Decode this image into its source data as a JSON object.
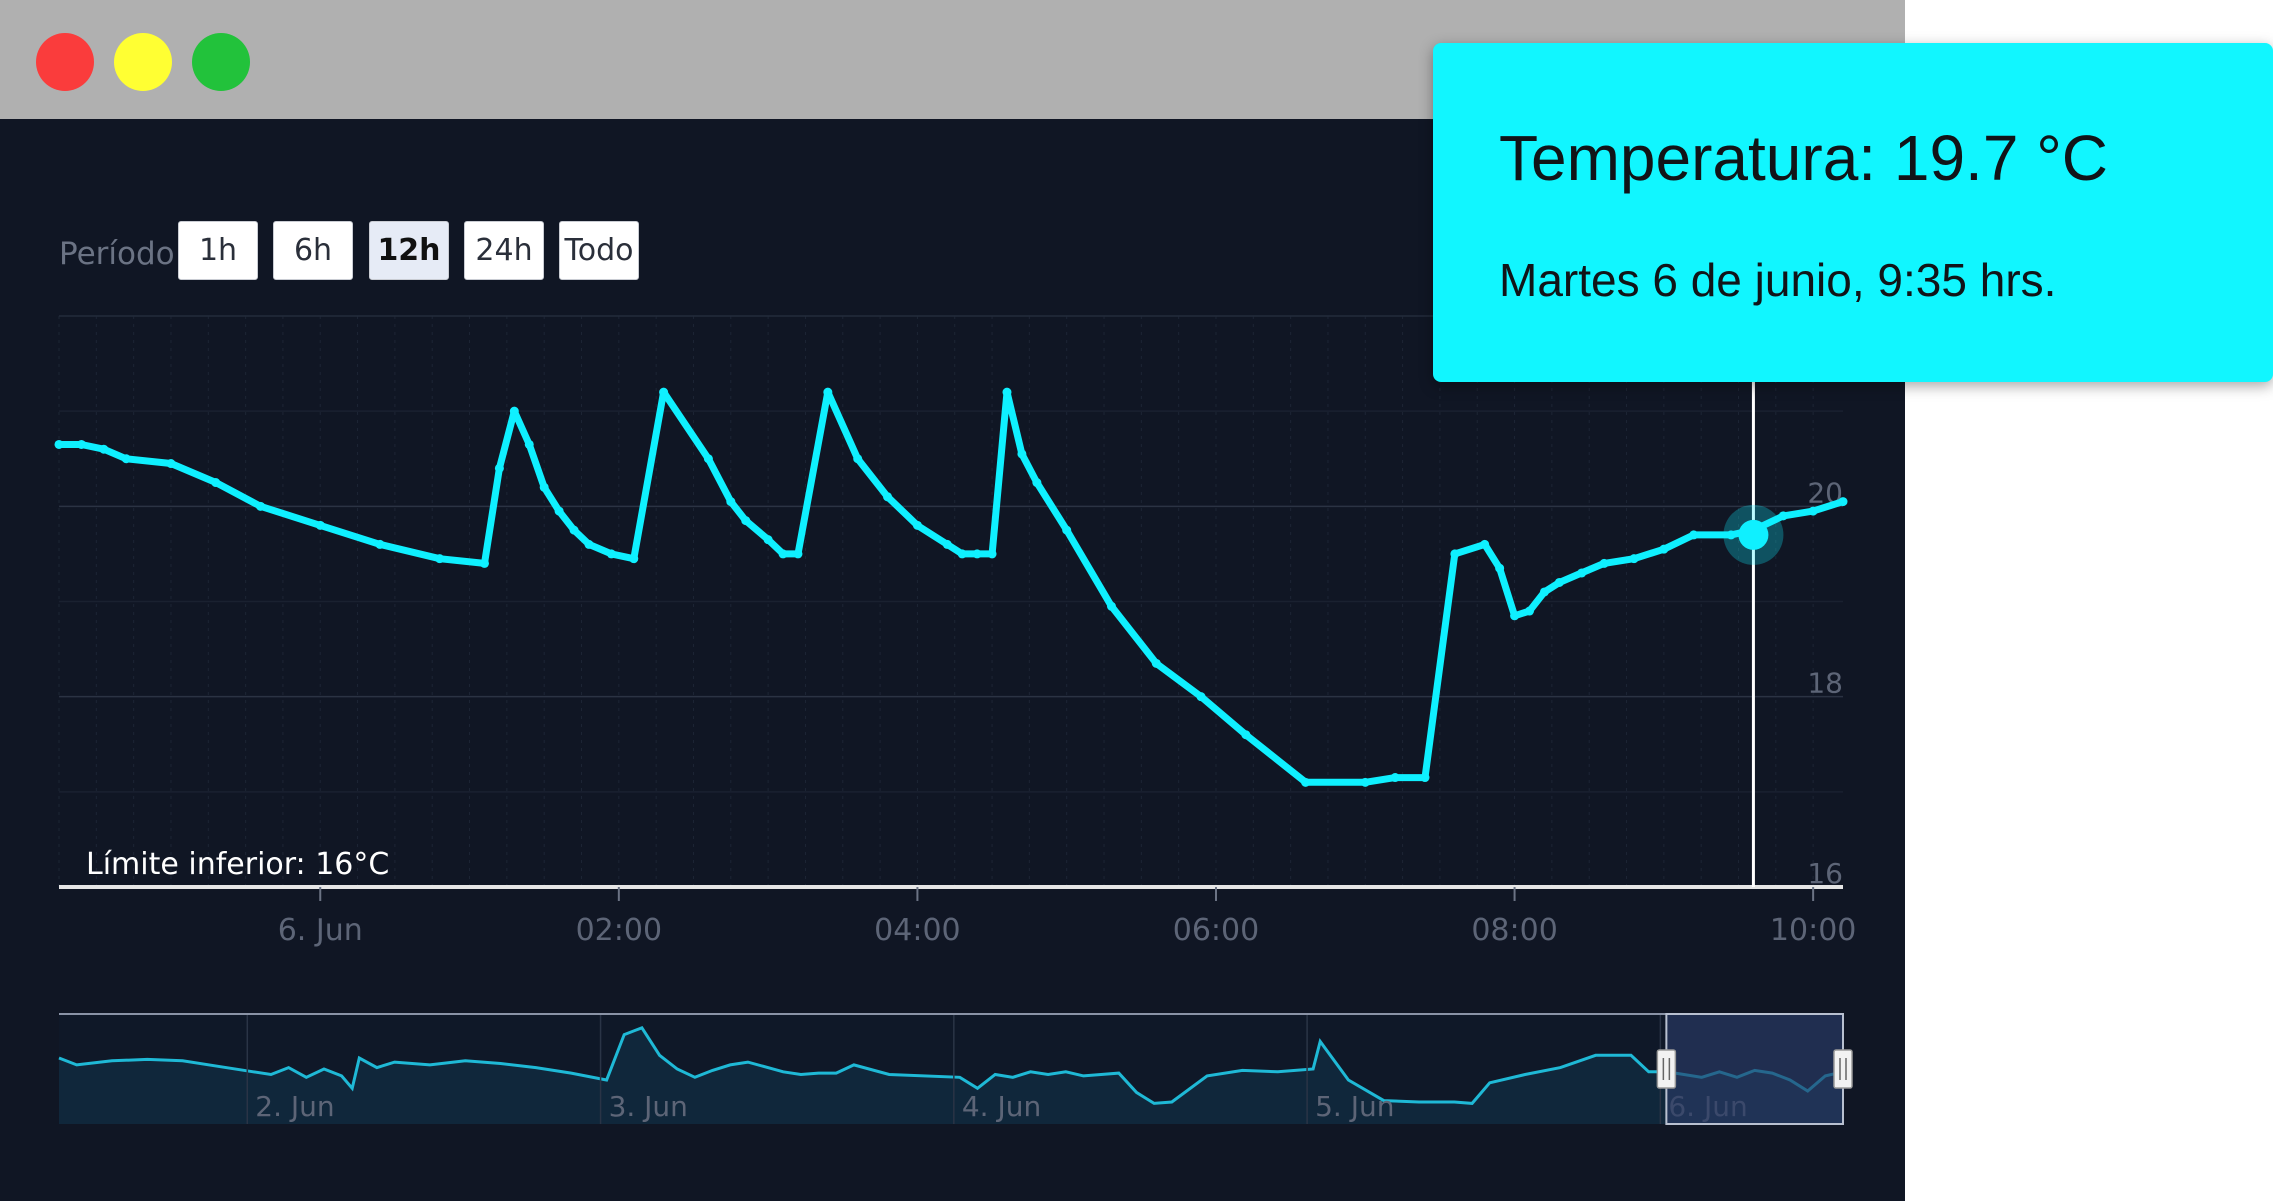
{
  "window": {
    "buttons": [
      "close",
      "minimize",
      "maximize"
    ]
  },
  "period": {
    "label": "Período",
    "options": [
      "1h",
      "6h",
      "12h",
      "24h",
      "Todo"
    ],
    "selected": "12h"
  },
  "tooltip": {
    "temperature": "Temperatura: 19.7 °C",
    "datetime": "Martes 6 de junio, 9:35 hrs."
  },
  "colors": {
    "series": "#0ff0ff",
    "background": "#101624",
    "tooltip": "#11f6ff",
    "navigator_selection": "#2a3a66"
  },
  "chart_data": [
    {
      "type": "line",
      "title": "",
      "xlabel": "",
      "ylabel": "",
      "x_tick_labels": [
        "6. Jun",
        "02:00",
        "04:00",
        "06:00",
        "08:00",
        "10:00"
      ],
      "x_tick_hours": [
        0,
        2,
        4,
        6,
        8,
        10
      ],
      "xlim_hours": [
        -1.75,
        10.2
      ],
      "y_ticks": [
        16,
        18,
        20
      ],
      "ylim": [
        16,
        22
      ],
      "plot_band_label": "Límite inferior: 16°C",
      "crosshair": {
        "x_hours": 9.6,
        "value": 19.7
      },
      "series": [
        {
          "x_hours": [
            -1.75,
            -1.6,
            -1.45,
            -1.3,
            -1.0,
            -0.7,
            -0.4,
            0.0,
            0.4,
            0.8,
            1.1,
            1.2,
            1.3,
            1.4,
            1.5,
            1.6,
            1.7,
            1.8,
            1.95,
            2.1,
            2.3,
            2.6,
            2.75,
            2.85,
            3.0,
            3.1,
            3.2,
            3.4,
            3.6,
            3.8,
            4.0,
            4.2,
            4.3,
            4.4,
            4.5,
            4.6,
            4.7,
            4.8,
            5.0,
            5.3,
            5.6,
            5.9,
            6.2,
            6.6,
            7.0,
            7.2,
            7.4,
            7.6,
            7.8,
            7.9,
            8.0,
            8.1,
            8.2,
            8.3,
            8.45,
            8.6,
            8.8,
            9.0,
            9.2,
            9.45,
            9.6,
            9.8,
            10.0,
            10.2
          ],
          "y": [
            20.65,
            20.65,
            20.6,
            20.5,
            20.45,
            20.25,
            20.0,
            19.8,
            19.6,
            19.45,
            19.4,
            20.4,
            21.0,
            20.65,
            20.2,
            19.95,
            19.75,
            19.6,
            19.5,
            19.45,
            21.2,
            20.5,
            20.05,
            19.85,
            19.65,
            19.5,
            19.5,
            21.2,
            20.5,
            20.1,
            19.8,
            19.6,
            19.5,
            19.5,
            19.5,
            21.2,
            20.55,
            20.25,
            19.75,
            18.95,
            18.35,
            18.0,
            17.6,
            17.1,
            17.1,
            17.15,
            17.15,
            19.5,
            19.6,
            19.35,
            18.85,
            18.9,
            19.1,
            19.2,
            19.3,
            19.4,
            19.45,
            19.55,
            19.7,
            19.7,
            19.75,
            19.9,
            19.95,
            20.05
          ]
        }
      ]
    },
    {
      "type": "area",
      "title": "",
      "x_tick_labels": [
        "2. Jun",
        "3. Jun",
        "4. Jun",
        "5. Jun",
        "6. Jun"
      ],
      "x_tick_days": [
        2,
        3,
        4,
        5,
        6
      ],
      "xlim_days": [
        1.45,
        6.5
      ],
      "ylim": [
        16,
        24
      ],
      "selection_days": [
        6.0,
        6.5
      ],
      "series": [
        {
          "x_days": [
            1.45,
            1.5,
            1.6,
            1.7,
            1.8,
            1.9,
            2.0,
            2.05,
            2.1,
            2.15,
            2.2,
            2.25,
            2.28,
            2.3,
            2.35,
            2.4,
            2.5,
            2.6,
            2.7,
            2.8,
            2.9,
            3.0,
            3.05,
            3.1,
            3.15,
            3.2,
            3.25,
            3.3,
            3.35,
            3.4,
            3.5,
            3.55,
            3.6,
            3.65,
            3.7,
            3.8,
            4.0,
            4.05,
            4.1,
            4.15,
            4.2,
            4.25,
            4.3,
            4.35,
            4.4,
            4.45,
            4.5,
            4.55,
            4.6,
            4.7,
            4.8,
            4.9,
            5.0,
            5.02,
            5.1,
            5.2,
            5.3,
            5.4,
            5.45,
            5.5,
            5.6,
            5.7,
            5.8,
            5.9,
            5.95,
            6.0,
            6.05,
            6.1,
            6.15,
            6.2,
            6.25,
            6.3,
            6.35,
            6.4,
            6.45,
            6.5
          ],
          "y": [
            20.8,
            20.3,
            20.6,
            20.7,
            20.6,
            20.2,
            19.8,
            19.6,
            20.1,
            19.4,
            20.0,
            19.5,
            18.6,
            20.8,
            20.1,
            20.5,
            20.3,
            20.6,
            20.4,
            20.1,
            19.7,
            19.2,
            22.5,
            23.0,
            21.0,
            20.0,
            19.4,
            19.9,
            20.3,
            20.5,
            19.8,
            19.6,
            19.7,
            19.7,
            20.3,
            19.6,
            19.4,
            18.6,
            19.6,
            19.4,
            19.8,
            19.6,
            19.8,
            19.5,
            19.6,
            19.7,
            18.3,
            17.5,
            17.6,
            19.5,
            19.9,
            19.8,
            20.0,
            22.0,
            19.2,
            17.7,
            17.6,
            17.6,
            17.5,
            19.0,
            19.6,
            20.1,
            21.0,
            21.0,
            19.8,
            19.8,
            19.6,
            19.4,
            19.8,
            19.4,
            19.9,
            19.7,
            19.2,
            18.4,
            19.5,
            19.8
          ]
        }
      ]
    }
  ]
}
